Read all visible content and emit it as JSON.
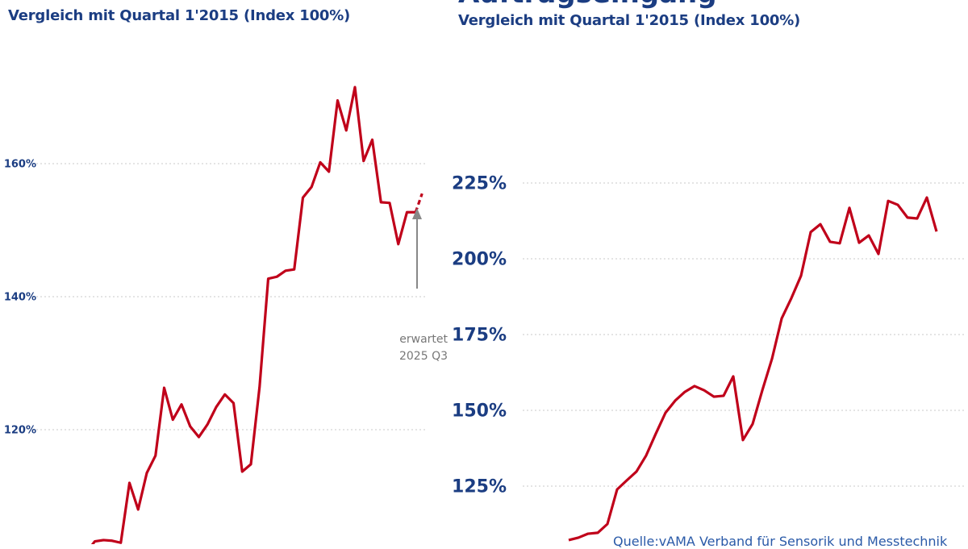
{
  "chart_data": [
    {
      "type": "line",
      "title": "Vergleich mit Quartal 1'2015 (Index 100%)",
      "xlabel": "",
      "ylabel": "",
      "ylim": [
        100,
        172
      ],
      "yticks": [
        {
          "value": 120,
          "label": "120%"
        },
        {
          "value": 140,
          "label": "140%"
        },
        {
          "value": 160,
          "label": "160%"
        }
      ],
      "grid": true,
      "series": [
        {
          "name": "Index",
          "color": "#c0001a",
          "values": [
            100,
            101.5,
            103.2,
            103.4,
            103.3,
            103.0,
            112.0,
            108.0,
            113.5,
            116.1,
            126.3,
            121.5,
            123.8,
            120.5,
            118.9,
            120.8,
            123.4,
            125.3,
            124.0,
            113.7,
            114.8,
            126.4,
            142.7,
            143.0,
            143.9,
            144.1,
            154.9,
            156.5,
            160.2,
            158.8,
            169.5,
            165.0,
            171.5,
            160.4,
            163.6,
            154.2,
            154.1,
            147.9,
            152.7,
            152.7
          ]
        }
      ],
      "forecast": {
        "value": 155.5,
        "label_line1": "erwartet",
        "label_line2": "2025 Q3"
      }
    },
    {
      "type": "line",
      "heading": "Auftragseingang",
      "title": "Vergleich mit Quartal 1'2015 (Index 100%)",
      "xlabel": "",
      "ylabel": "",
      "ylim": [
        100,
        230
      ],
      "yticks": [
        {
          "value": 125,
          "label": "125%"
        },
        {
          "value": 150,
          "label": "150%"
        },
        {
          "value": 175,
          "label": "175%"
        },
        {
          "value": 200,
          "label": "200%"
        },
        {
          "value": 225,
          "label": "225%"
        }
      ],
      "grid": true,
      "series": [
        {
          "name": "Index",
          "color": "#c0001a",
          "values": [
            107.2,
            108.0,
            109.3,
            109.6,
            112.5,
            123.9,
            126.9,
            129.8,
            135.1,
            142.3,
            149.2,
            153.2,
            156.1,
            158.0,
            156.6,
            154.5,
            154.8,
            161.2,
            140.2,
            145.5,
            156.6,
            167.0,
            180.3,
            187.0,
            194.4,
            208.8,
            211.4,
            205.6,
            205.1,
            216.8,
            205.3,
            207.7,
            201.6,
            219.1,
            217.8,
            213.6,
            213.3,
            220.2,
            209.0
          ]
        }
      ],
      "source": "Quelle:vAMA Verband für Sensorik und Messtechnik"
    }
  ]
}
